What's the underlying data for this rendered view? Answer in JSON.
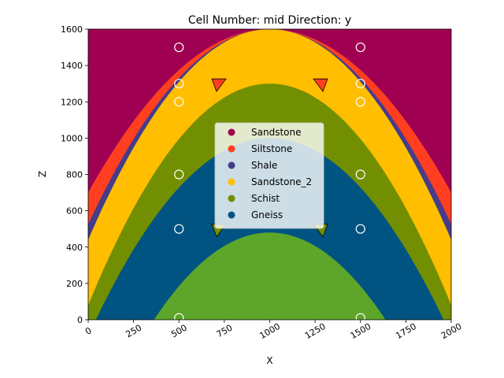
{
  "chart_data": {
    "type": "heatmap",
    "title": "Cell Number: mid Direction: y",
    "xlabel": "X",
    "ylabel": "Z",
    "xlim": [
      0,
      2000
    ],
    "ylim": [
      0,
      1600
    ],
    "xticks": [
      "0",
      "250",
      "500",
      "750",
      "1000",
      "1250",
      "1500",
      "1750",
      "2000"
    ],
    "yticks": [
      "0",
      "200",
      "400",
      "600",
      "800",
      "1000",
      "1200",
      "1400",
      "1600"
    ],
    "xtick_values": [
      0,
      250,
      500,
      750,
      1000,
      1250,
      1500,
      1750,
      2000
    ],
    "ytick_values": [
      0,
      200,
      400,
      600,
      800,
      1000,
      1200,
      1400,
      1600
    ],
    "legend_position": "center",
    "grid": false,
    "fold_axis_x": 1000,
    "units": [
      {
        "name": "Sandstone",
        "color": "#9f0052",
        "top_at_edge": 1600,
        "top_at_crest": 1600
      },
      {
        "name": "Siltstone",
        "color": "#ff3f20",
        "top_at_edge": 700,
        "top_at_crest": 1600
      },
      {
        "name": "Shale",
        "color": "#453c8c",
        "top_at_edge": 525,
        "top_at_crest": 1600
      },
      {
        "name": "Sandstone_2",
        "color": "#ffbe00",
        "top_at_edge": 440,
        "top_at_crest": 1600
      },
      {
        "name": "Schist",
        "color": "#728f02",
        "top_at_edge": 80,
        "top_at_crest": 1300
      },
      {
        "name": "Gneiss",
        "color": "#015482",
        "top_at_edge": -90,
        "top_at_crest": 1000
      },
      {
        "name": "",
        "color": "#5da629",
        "top_at_edge": -700,
        "top_at_crest": 480
      }
    ],
    "points": [
      {
        "x": 500,
        "z": 1500
      },
      {
        "x": 500,
        "z": 1300
      },
      {
        "x": 500,
        "z": 1200
      },
      {
        "x": 500,
        "z": 800
      },
      {
        "x": 500,
        "z": 500
      },
      {
        "x": 500,
        "z": 10
      },
      {
        "x": 1500,
        "z": 1500
      },
      {
        "x": 1500,
        "z": 1300
      },
      {
        "x": 1500,
        "z": 1200
      },
      {
        "x": 1500,
        "z": 800
      },
      {
        "x": 1500,
        "z": 500
      },
      {
        "x": 1500,
        "z": 10
      }
    ],
    "orientations": [
      {
        "x": 720,
        "z": 1300,
        "dir": "left",
        "color": "#ff3f20"
      },
      {
        "x": 1280,
        "z": 1300,
        "dir": "right",
        "color": "#ff3f20"
      },
      {
        "x": 720,
        "z": 500,
        "dir": "left",
        "color": "#728f02"
      },
      {
        "x": 1280,
        "z": 500,
        "dir": "right",
        "color": "#728f02"
      }
    ]
  }
}
